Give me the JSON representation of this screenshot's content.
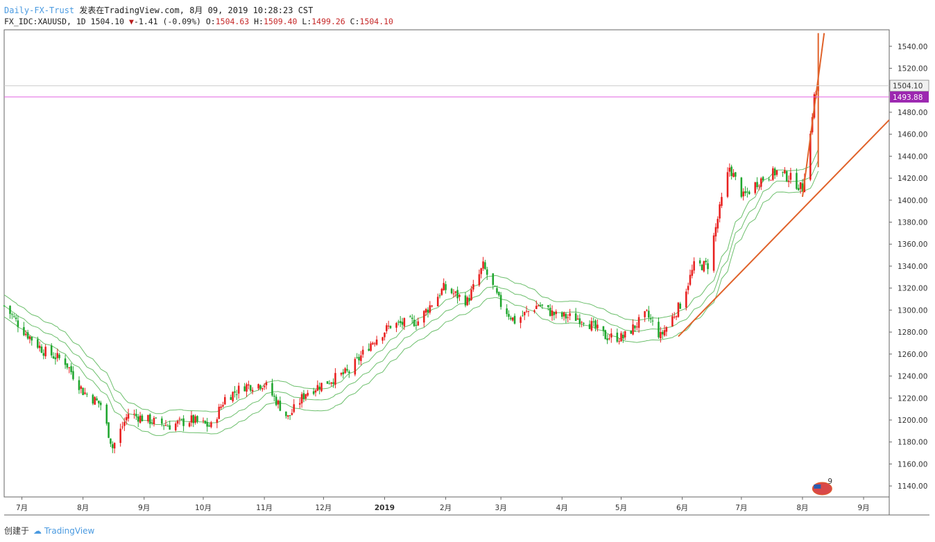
{
  "header": {
    "source": "Daily-FX-Trust",
    "published": "发表在TradingView.com, 8月 09, 2019 10:28:23 CST",
    "symbol": "FX_IDC:XAUUSD, 1D",
    "last": "1504.10",
    "change": "-1.41 (-0.09%)",
    "o_label": "O:",
    "o": "1504.63",
    "h_label": "H:",
    "h": "1509.40",
    "l_label": "L:",
    "l": "1499.26",
    "c_label": "C:",
    "c": "1504.10"
  },
  "footer": {
    "created": "创建于",
    "brand": "TradingView"
  },
  "colors": {
    "up": "#e8201f",
    "down": "#1fa62e",
    "ribbon": "#6cbf6c",
    "trend": "#e0622a",
    "price_tag": "#9c27b0",
    "line": "#e060e0"
  },
  "chart_data": {
    "type": "candlestick",
    "ylim": [
      1130,
      1555
    ],
    "yticks": [
      1140,
      1160,
      1180,
      1200,
      1220,
      1240,
      1260,
      1280,
      1300,
      1320,
      1340,
      1360,
      1380,
      1400,
      1420,
      1440,
      1460,
      1480,
      1500,
      1520,
      1540
    ],
    "ytick_labels": [
      "1140.00",
      "1160.00",
      "1180.00",
      "1200.00",
      "1220.00",
      "1240.00",
      "1260.00",
      "1280.00",
      "1300.00",
      "1320.00",
      "1340.00",
      "1360.00",
      "1380.00",
      "1400.00",
      "1420.00",
      "1440.00",
      "1460.00",
      "1480.00",
      "1500.00",
      "1520.00",
      "1540.00"
    ],
    "xlim": [
      "2018-06-22",
      "2019-09-14"
    ],
    "xticks": [
      {
        "date": "2018-07-01",
        "label": "7月"
      },
      {
        "date": "2018-08-01",
        "label": "8月"
      },
      {
        "date": "2018-09-01",
        "label": "9月"
      },
      {
        "date": "2018-10-01",
        "label": "10月"
      },
      {
        "date": "2018-11-01",
        "label": "11月"
      },
      {
        "date": "2018-12-01",
        "label": "12月"
      },
      {
        "date": "2019-01-01",
        "label": "2019"
      },
      {
        "date": "2019-02-01",
        "label": "2月"
      },
      {
        "date": "2019-03-01",
        "label": "3月"
      },
      {
        "date": "2019-04-01",
        "label": "4月"
      },
      {
        "date": "2019-05-01",
        "label": "5月"
      },
      {
        "date": "2019-06-01",
        "label": "6月"
      },
      {
        "date": "2019-07-01",
        "label": "7月"
      },
      {
        "date": "2019-08-01",
        "label": "8月"
      },
      {
        "date": "2019-09-01",
        "label": "9月"
      }
    ],
    "price_labels": [
      {
        "value": 1504.1,
        "label": "1504.10",
        "style": "last"
      },
      {
        "value": 1493.88,
        "label": "1493.88",
        "style": "marked"
      }
    ],
    "closes": [
      [
        "2018-06-22",
        1304
      ],
      [
        "2018-07-02",
        1281
      ],
      [
        "2018-07-12",
        1263
      ],
      [
        "2018-07-23",
        1253
      ],
      [
        "2018-08-01",
        1226
      ],
      [
        "2018-08-10",
        1214
      ],
      [
        "2018-08-16",
        1175
      ],
      [
        "2018-08-24",
        1206
      ],
      [
        "2018-09-03",
        1200
      ],
      [
        "2018-09-14",
        1195
      ],
      [
        "2018-09-25",
        1200
      ],
      [
        "2018-10-05",
        1194
      ],
      [
        "2018-10-12",
        1220
      ],
      [
        "2018-10-22",
        1231
      ],
      [
        "2018-11-01",
        1233
      ],
      [
        "2018-11-13",
        1202
      ],
      [
        "2018-11-22",
        1225
      ],
      [
        "2018-12-03",
        1235
      ],
      [
        "2018-12-14",
        1244
      ],
      [
        "2018-12-25",
        1270
      ],
      [
        "2019-01-04",
        1286
      ],
      [
        "2019-01-18",
        1290
      ],
      [
        "2019-01-31",
        1320
      ],
      [
        "2019-02-12",
        1308
      ],
      [
        "2019-02-20",
        1340
      ],
      [
        "2019-03-01",
        1305
      ],
      [
        "2019-03-08",
        1290
      ],
      [
        "2019-03-20",
        1305
      ],
      [
        "2019-03-29",
        1295
      ],
      [
        "2019-04-12",
        1292
      ],
      [
        "2019-04-23",
        1276
      ],
      [
        "2019-05-02",
        1275
      ],
      [
        "2019-05-14",
        1296
      ],
      [
        "2019-05-21",
        1276
      ],
      [
        "2019-05-31",
        1305
      ],
      [
        "2019-06-07",
        1340
      ],
      [
        "2019-06-14",
        1341
      ],
      [
        "2019-06-21",
        1400
      ],
      [
        "2019-06-25",
        1430
      ],
      [
        "2019-07-02",
        1403
      ],
      [
        "2019-07-10",
        1418
      ],
      [
        "2019-07-19",
        1426
      ],
      [
        "2019-07-26",
        1420
      ],
      [
        "2019-08-01",
        1410
      ],
      [
        "2019-08-05",
        1460
      ],
      [
        "2019-08-07",
        1495
      ],
      [
        "2019-08-09",
        1504
      ]
    ],
    "ribbons": [
      {
        "name": "ribbon-upper",
        "offset": 10
      },
      {
        "name": "ribbon-mid",
        "offset": 0
      },
      {
        "name": "ribbon-lower",
        "offset": -10
      }
    ],
    "trend_lines": [
      {
        "from": [
          "2019-05-30",
          1276
        ],
        "to": [
          "2019-09-14",
          1473
        ]
      },
      {
        "from": [
          "2019-08-01",
          1403
        ],
        "to": [
          "2019-08-12",
          1552
        ]
      },
      {
        "from": [
          "2019-08-09",
          1552
        ],
        "to": [
          "2019-08-09",
          1430
        ]
      }
    ],
    "event_badge": {
      "date": "2019-08-11",
      "label": "9"
    }
  }
}
